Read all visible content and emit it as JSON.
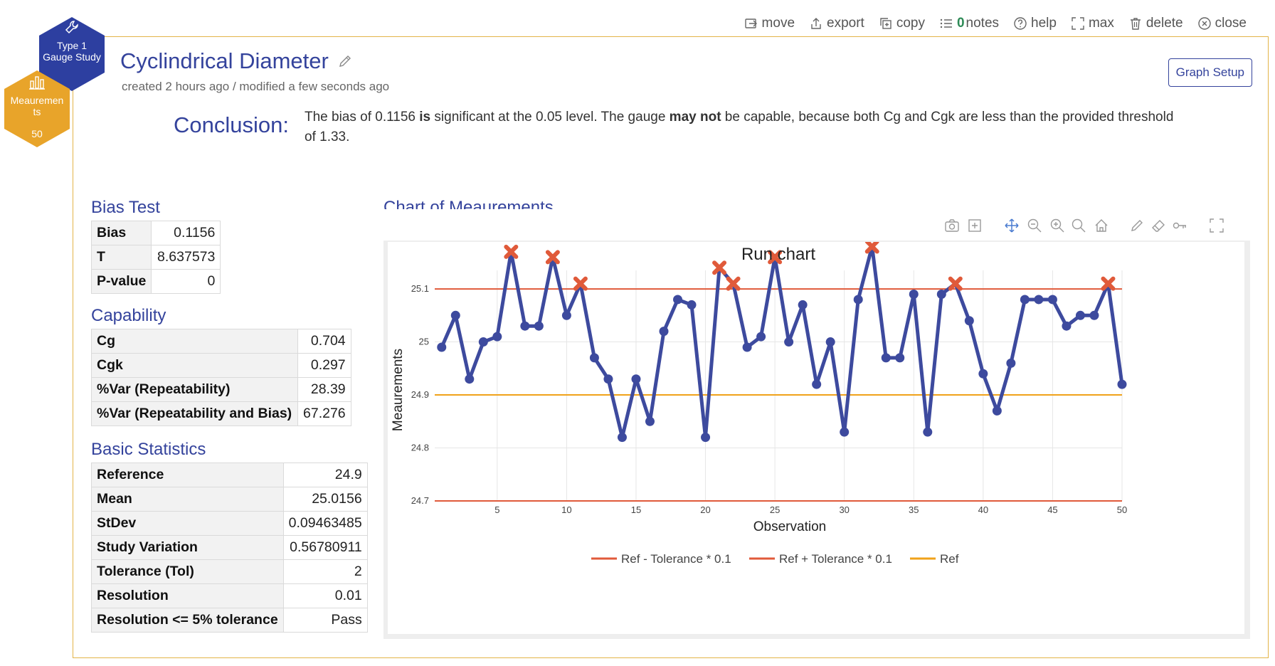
{
  "toolbar": {
    "move": "move",
    "export": "export",
    "copy": "copy",
    "notes_count": "0",
    "notes": "notes",
    "help": "help",
    "max": "max",
    "delete": "delete",
    "close": "close"
  },
  "badges": {
    "study_type_line1": "Type 1",
    "study_type_line2": "Gauge Study",
    "dataset_line1": "Meauremen",
    "dataset_line2": "ts",
    "dataset_count": "50",
    "colors": {
      "study": "#2d3fa0",
      "dataset": "#e8a42a"
    }
  },
  "header": {
    "title": "Cyclindrical Diameter",
    "subtitle": "created 2 hours ago / modified a few seconds ago",
    "graph_setup": "Graph Setup"
  },
  "conclusion": {
    "label": "Conclusion:",
    "p1": "The bias of 0.1156 ",
    "b1": "is",
    "p2": " significant at the 0.05 level. The gauge ",
    "b2": "may not",
    "p3": " be capable, because both Cg and Cgk are less than the provided threshold of 1.33."
  },
  "bias_test": {
    "heading": "Bias Test",
    "rows": [
      {
        "k": "Bias",
        "v": "0.1156"
      },
      {
        "k": "T",
        "v": "8.637573"
      },
      {
        "k": "P-value",
        "v": "0"
      }
    ]
  },
  "capability": {
    "heading": "Capability",
    "rows": [
      {
        "k": "Cg",
        "v": "0.704"
      },
      {
        "k": "Cgk",
        "v": "0.297"
      },
      {
        "k": "%Var (Repeatability)",
        "v": "28.39"
      },
      {
        "k": "%Var (Repeatability and Bias)",
        "v": "67.276"
      }
    ]
  },
  "basic_stats": {
    "heading": "Basic Statistics",
    "rows": [
      {
        "k": "Reference",
        "v": "24.9"
      },
      {
        "k": "Mean",
        "v": "25.0156"
      },
      {
        "k": "StDev",
        "v": "0.09463485"
      },
      {
        "k": "Study Variation",
        "v": "0.56780911"
      },
      {
        "k": "Tolerance (Tol)",
        "v": "2"
      },
      {
        "k": "Resolution",
        "v": "0.01"
      },
      {
        "k": "Resolution <= 5% tolerance",
        "v": "Pass"
      }
    ]
  },
  "chart_section": {
    "heading": "Chart of Meaurements"
  },
  "chart_data": {
    "type": "line",
    "title": "Run chart",
    "xlabel": "Observation",
    "ylabel": "Meaurements",
    "xlim": [
      0.5,
      50
    ],
    "ylim": [
      24.7,
      25.135
    ],
    "xticks": [
      5,
      10,
      15,
      20,
      25,
      30,
      35,
      40,
      45,
      50
    ],
    "yticks": [
      24.7,
      24.8,
      24.9,
      25,
      25.1
    ],
    "ytick_labels": [
      "24.7",
      "24.8",
      "24.9",
      "25",
      "25.1"
    ],
    "x": [
      1,
      2,
      3,
      4,
      5,
      6,
      7,
      8,
      9,
      10,
      11,
      12,
      13,
      14,
      15,
      16,
      17,
      18,
      19,
      20,
      21,
      22,
      23,
      24,
      25,
      26,
      27,
      28,
      29,
      30,
      31,
      32,
      33,
      34,
      35,
      36,
      37,
      38,
      39,
      40,
      41,
      42,
      43,
      44,
      45,
      46,
      47,
      48,
      49,
      50
    ],
    "values": [
      24.99,
      25.05,
      24.93,
      25.0,
      25.01,
      25.17,
      25.03,
      25.03,
      25.16,
      25.05,
      25.11,
      24.97,
      24.93,
      24.82,
      24.93,
      24.85,
      25.02,
      25.08,
      25.07,
      24.82,
      25.14,
      25.11,
      24.99,
      25.01,
      25.16,
      25.0,
      25.07,
      24.92,
      25.0,
      24.83,
      25.08,
      25.18,
      24.97,
      24.97,
      25.09,
      24.83,
      25.09,
      25.11,
      25.04,
      24.94,
      24.87,
      24.96,
      25.08,
      25.08,
      25.08,
      25.03,
      25.05,
      25.05,
      25.11,
      24.92
    ],
    "out_of_limit_x": [
      6,
      9,
      11,
      21,
      22,
      25,
      32,
      38,
      49
    ],
    "reference_lines": [
      {
        "name": "Ref - Tolerance * 0.1",
        "value": 24.7,
        "color": "#e05a3a"
      },
      {
        "name": "Ref + Tolerance * 0.1",
        "value": 25.1,
        "color": "#e05a3a"
      },
      {
        "name": "Ref",
        "value": 24.9,
        "color": "#f0a21a"
      }
    ],
    "series_color": "#3d4a9e",
    "marker_alert_color": "#e05a3a",
    "grid": true,
    "legend": "bottom"
  }
}
